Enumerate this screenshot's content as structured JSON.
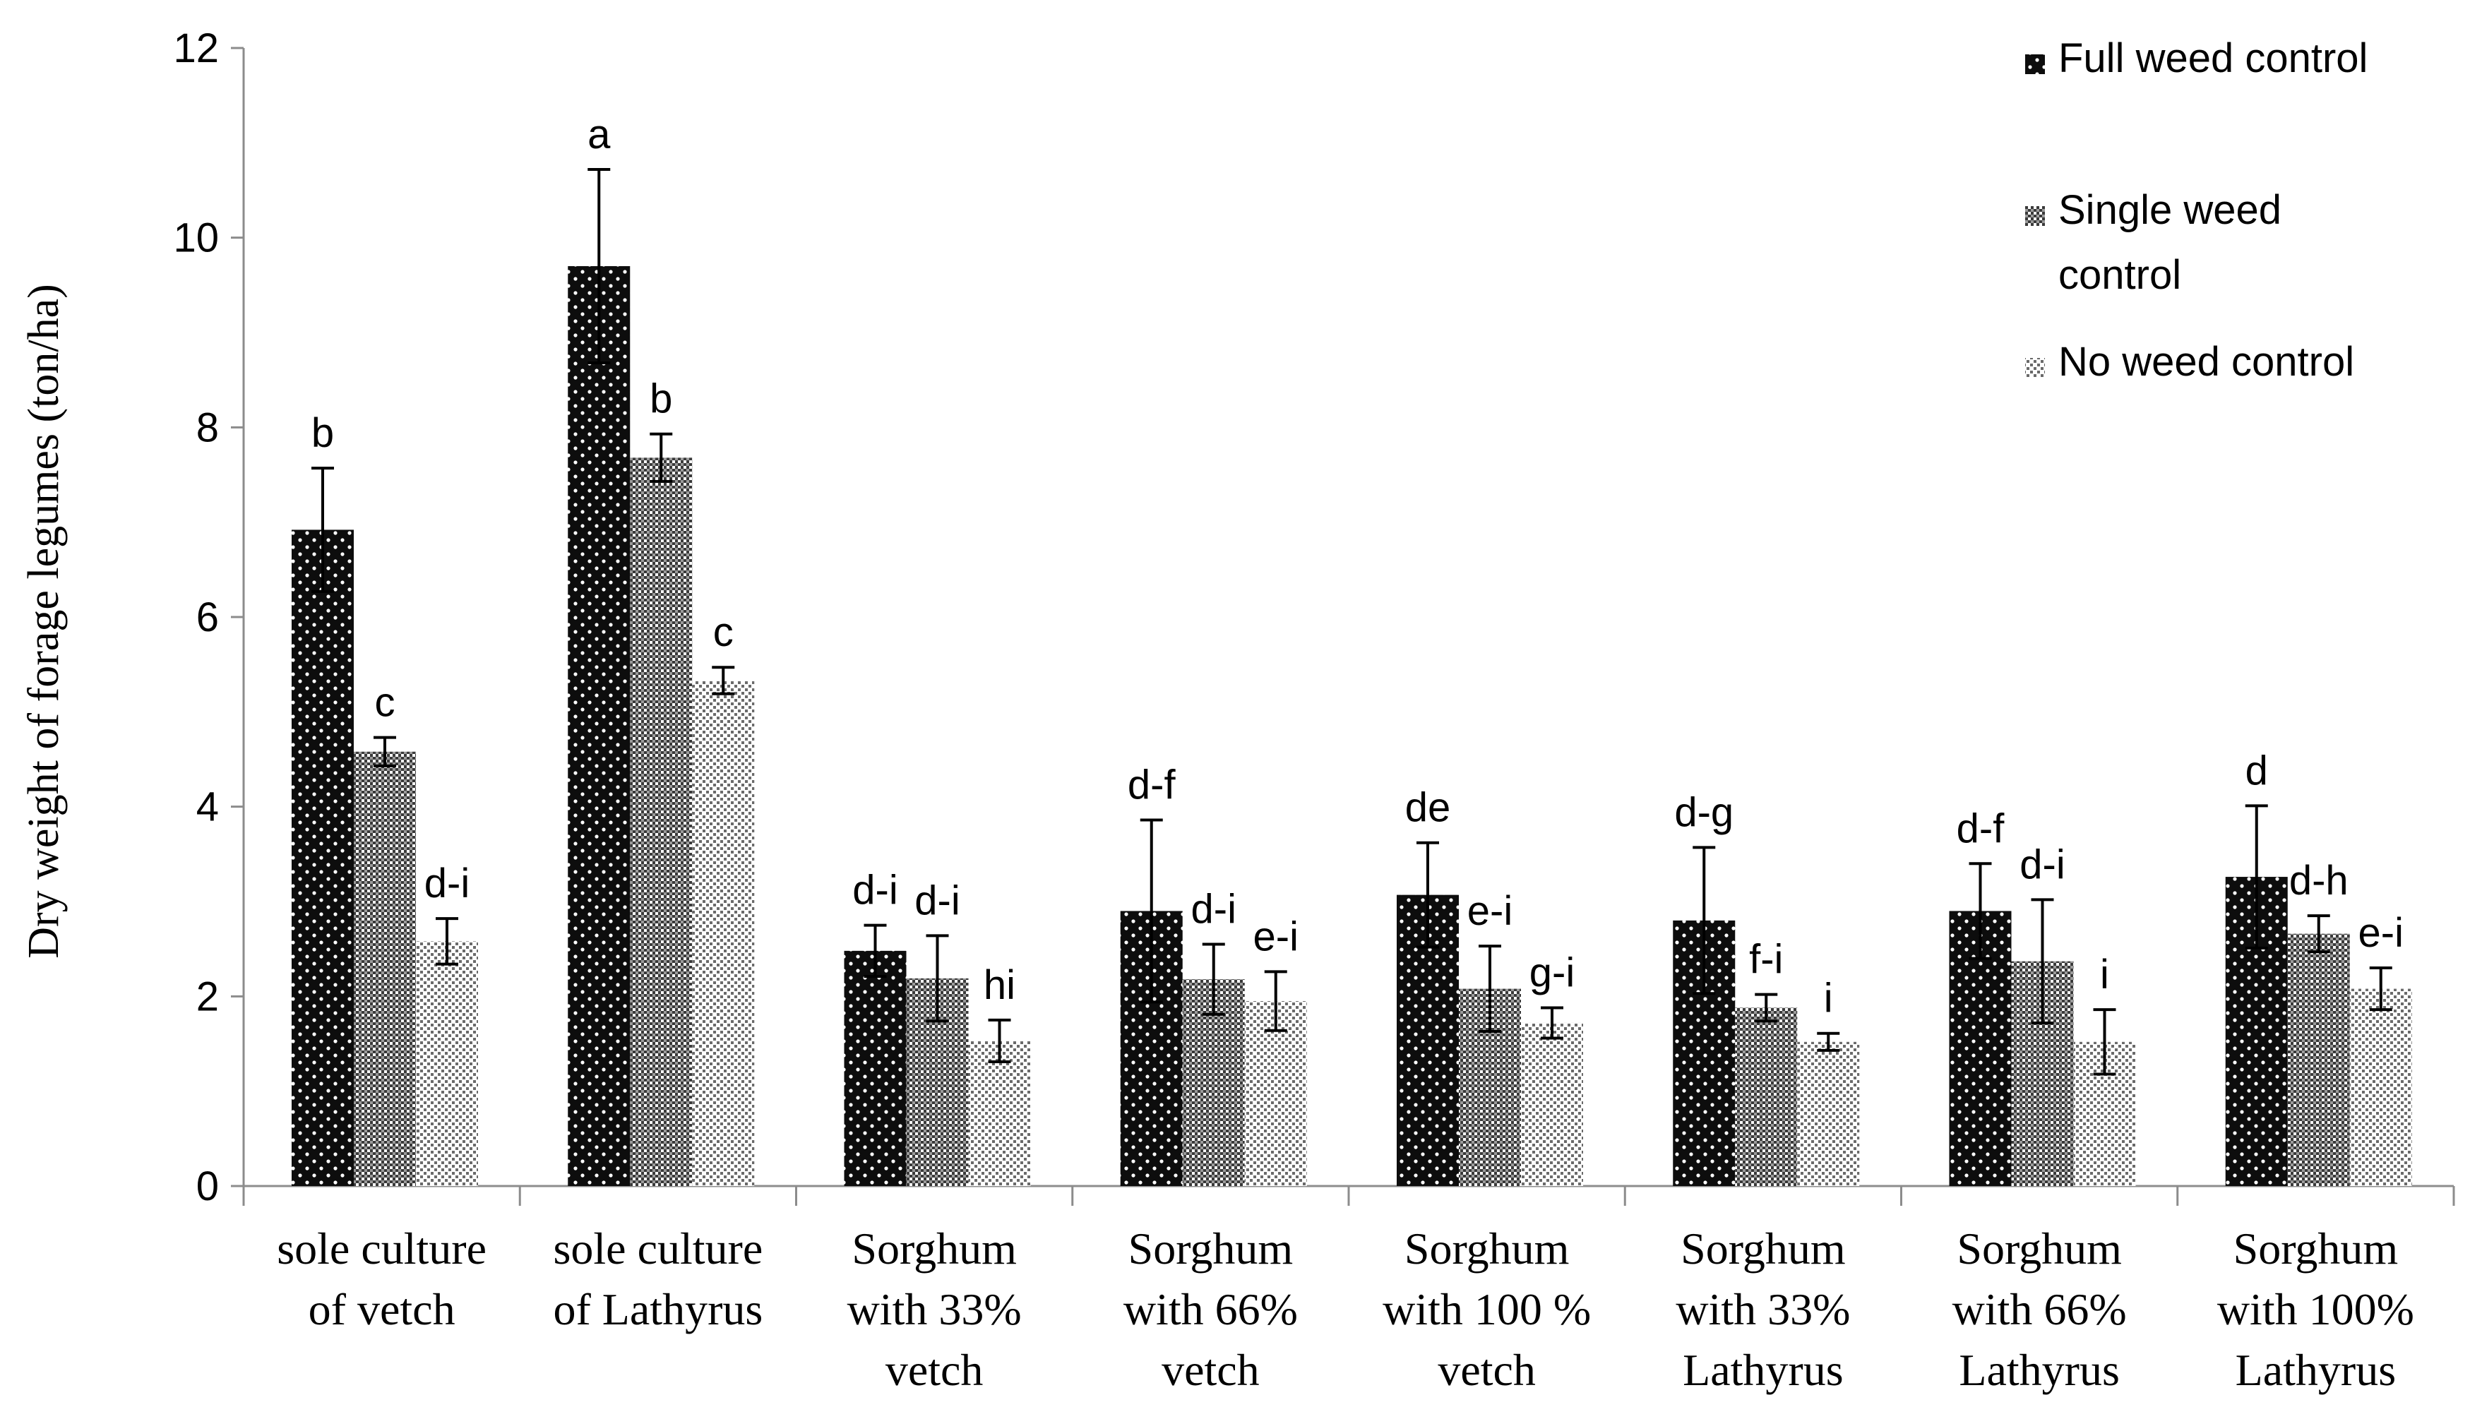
{
  "chart_data": {
    "type": "bar",
    "title": "",
    "xlabel": "",
    "ylabel": "Dry weight of forage legumes (ton/ha)",
    "ylim": [
      0,
      12
    ],
    "yticks": [
      "0",
      "2",
      "4",
      "6",
      "8",
      "10",
      "12"
    ],
    "ytick_values": [
      0,
      2,
      4,
      6,
      8,
      10,
      12
    ],
    "grid": false,
    "legend_position": "top-right",
    "categories": [
      [
        "sole culture",
        "of vetch"
      ],
      [
        "sole   culture",
        "of Lathyrus"
      ],
      [
        "Sorghum",
        "with 33%",
        "vetch"
      ],
      [
        "Sorghum",
        "with 66%",
        "vetch"
      ],
      [
        "Sorghum",
        "with 100 %",
        "vetch"
      ],
      [
        "Sorghum",
        "with 33%",
        "Lathyrus"
      ],
      [
        "Sorghum",
        "with 66%",
        "Lathyrus"
      ],
      [
        "Sorghum",
        "with 100%",
        "Lathyrus"
      ]
    ],
    "series": [
      {
        "name": "Full weed control",
        "legend_lines": [
          "Full weed control"
        ],
        "pattern": "full",
        "values": [
          6.92,
          9.7,
          2.48,
          2.9,
          3.07,
          2.8,
          2.9,
          3.26
        ],
        "errors": [
          0.65,
          1.02,
          0.27,
          0.96,
          0.55,
          0.77,
          0.5,
          0.75
        ],
        "labels": [
          "b",
          "a",
          "d-i",
          "d-f",
          "de",
          "d-g",
          "d-f",
          "d"
        ]
      },
      {
        "name": "Single weed control",
        "legend_lines": [
          "Single weed",
          "control"
        ],
        "pattern": "single",
        "values": [
          4.58,
          7.68,
          2.19,
          2.18,
          2.08,
          1.88,
          2.37,
          2.66
        ],
        "errors": [
          0.15,
          0.25,
          0.45,
          0.37,
          0.45,
          0.14,
          0.65,
          0.19
        ],
        "labels": [
          "c",
          "b",
          "d-i",
          "d-i",
          "e-i",
          "f-i",
          "d-i",
          "d-h"
        ]
      },
      {
        "name": "No weed control",
        "legend_lines": [
          "No weed control"
        ],
        "pattern": "none",
        "values": [
          2.58,
          5.33,
          1.53,
          1.95,
          1.72,
          1.52,
          1.52,
          2.08
        ],
        "errors": [
          0.24,
          0.14,
          0.22,
          0.31,
          0.16,
          0.09,
          0.34,
          0.22
        ],
        "labels": [
          "d-i",
          "c",
          "hi",
          "e-i",
          "g-i",
          "i",
          "i",
          "e-i"
        ]
      }
    ],
    "colors": {
      "full": "#111111",
      "single": "#666666",
      "none": "#9a9a9a",
      "axis": "#8c8c8c"
    }
  }
}
